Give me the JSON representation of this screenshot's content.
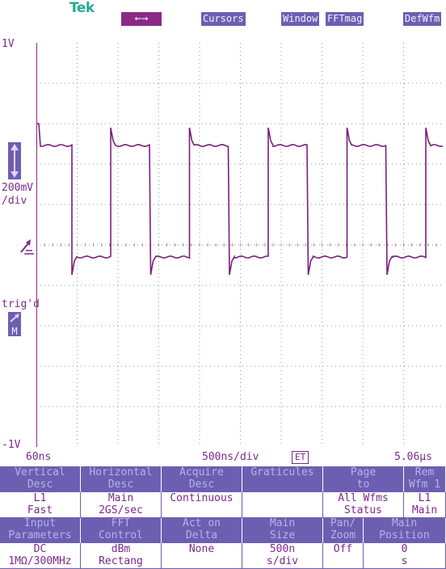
{
  "top": {
    "logo": "Tek",
    "arrow_button": "←→",
    "cursors": "Cursors",
    "window": "Window",
    "fft_mag": "FFTmag",
    "def_wfm": "DefWfm"
  },
  "scope": {
    "top_scale": "1V",
    "bottom_scale": "-1V",
    "volts_per_div_value": "200mV",
    "volts_per_div_unit": "/div",
    "trigger_status": "trig'd",
    "trigger_marker": "M",
    "left_time": "60ns",
    "time_per_div": "500ns/div",
    "et_badge": "ET",
    "right_time": "5.06μs"
  },
  "colors": {
    "trace": "#7a1f7a",
    "grid": "#8a9aa0",
    "accent": "#6c5fb1",
    "highlight": "#8a2a86"
  },
  "menu": {
    "row1": [
      {
        "h1": "Vertical",
        "h2": "Desc",
        "v1": "L1",
        "v2": "Fast"
      },
      {
        "h1": "Horizontal",
        "h2": "Desc",
        "v1": "Main",
        "v2": "2GS/sec"
      },
      {
        "h1": "Acquire",
        "h2": "Desc",
        "v1": "Continuous",
        "v2": ""
      },
      {
        "h1": "Graticules",
        "h2": "",
        "v1": "",
        "v2": ""
      },
      {
        "h1": "Page",
        "h2": "to",
        "v1": "All Wfms",
        "v2": "Status"
      },
      {
        "h1": "Rem",
        "h2": "Wfm 1",
        "v1": "L1",
        "v2": "Main"
      }
    ],
    "row2": [
      {
        "h1": "Input",
        "h2": "Parameters",
        "v1": "DC",
        "v2": "1MΩ/300MHz"
      },
      {
        "h1": "FFT",
        "h2": "Control",
        "v1": "dBm",
        "v2": "Rectang"
      },
      {
        "h1": "Act on",
        "h2": "Delta",
        "v1": "None",
        "v2": ""
      },
      {
        "h1": "Main",
        "h2": "Size",
        "v1": "500n",
        "v2": "s/div"
      },
      {
        "h1": "Pan/",
        "h2": "Zoom",
        "v1": "Off",
        "v2": ""
      },
      {
        "h1": "Main",
        "h2": "Position",
        "v1": "0",
        "v2": "s"
      }
    ]
  }
}
